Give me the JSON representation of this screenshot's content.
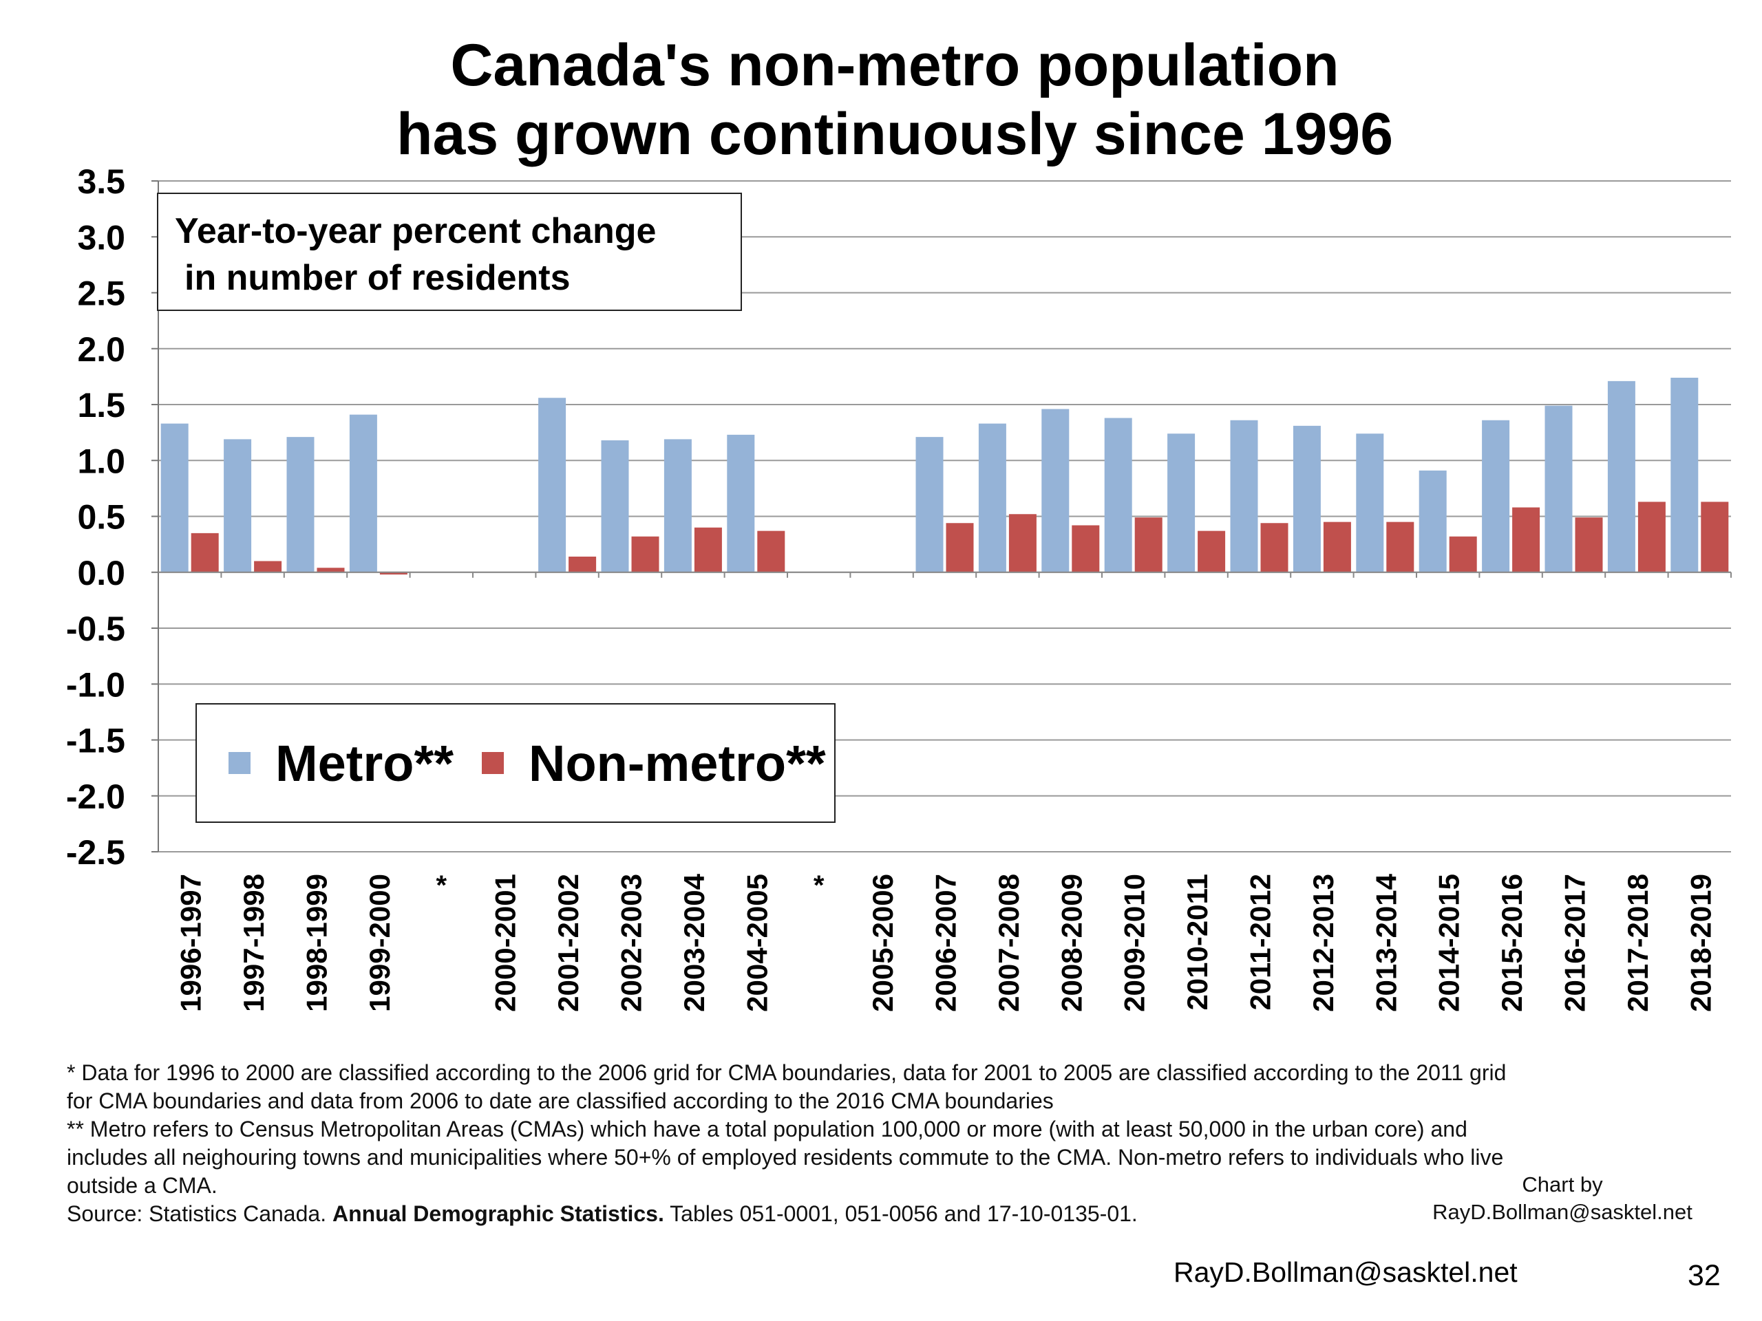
{
  "slide": {
    "title_line1": "Canada's non-metro population",
    "title_line2": "has grown continuously since 1996",
    "box_text_line1": "Year-to-year percent change",
    "box_text_line2": "in number of residents",
    "notes": [
      "* Data for 1996 to 2000 are classified according to the 2006 grid for CMA boundaries, data for 2001 to 2005 are classified according to the 2011 grid",
      "for CMA boundaries and data from 2006 to date are classified according to the 2016 CMA boundaries",
      "** Metro refers to Census Metropolitan Areas (CMAs) which have a total population 100,000 or more (with at least 50,000 in the urban core) and",
      "includes all neighouring towns and municipalities where 50+% of employed residents commute to the CMA. Non-metro refers to individuals who live",
      "outside a CMA."
    ],
    "source_prefix": "Source: Statistics Canada.",
    "source_bold": "Annual Demographic Statistics.",
    "source_suffix": "Tables 051-0001, 051-0056 and 17-10-0135-01.",
    "credit_line1": "Chart by",
    "credit_line2": "RayD.Bollman@sasktel.net",
    "footer_email": "RayD.Bollman@sasktel.net",
    "page_number": "32"
  },
  "chart_data": {
    "type": "bar",
    "title": "Canada's non-metro population has grown continuously since 1996",
    "ylabel": "",
    "xlabel": "",
    "ylim": [
      -2.5,
      3.5
    ],
    "y_ticks": [
      "3.5",
      "3.0",
      "2.5",
      "2.0",
      "1.5",
      "1.0",
      "0.5",
      "0.0",
      "-0.5",
      "-1.0",
      "-1.5",
      "-2.0",
      "-2.5"
    ],
    "y_tick_values": [
      3.5,
      3.0,
      2.5,
      2.0,
      1.5,
      1.0,
      0.5,
      0.0,
      -0.5,
      -1.0,
      -1.5,
      -2.0,
      -2.5
    ],
    "grid": true,
    "legend_position": "bottom-left",
    "categories": [
      "1996-1997",
      "1997-1998",
      "1998-1999",
      "1999-2000",
      "*",
      "2000-2001",
      "2001-2002",
      "2002-2003",
      "2003-2004",
      "2004-2005",
      "*",
      "2005-2006",
      "2006-2007",
      "2007-2008",
      "2008-2009",
      "2009-2010",
      "2010-2011",
      "2011-2012",
      "2012-2013",
      "2013-2014",
      "2014-2015",
      "2015-2016",
      "2016-2017",
      "2017-2018",
      "2018-2019"
    ],
    "series": [
      {
        "name": "Metro**",
        "color": "#95B3D7",
        "values": [
          1.33,
          1.19,
          1.21,
          1.41,
          null,
          null,
          1.56,
          1.18,
          1.19,
          1.23,
          null,
          null,
          1.21,
          1.33,
          1.46,
          1.38,
          1.24,
          1.36,
          1.31,
          1.24,
          0.91,
          1.36,
          1.49,
          1.71,
          1.74
        ]
      },
      {
        "name": "Non-metro**",
        "color": "#C0504D",
        "values": [
          0.35,
          0.1,
          0.04,
          -0.02,
          null,
          null,
          0.14,
          0.32,
          0.4,
          0.37,
          null,
          null,
          0.44,
          0.52,
          0.42,
          0.49,
          0.37,
          0.44,
          0.45,
          0.45,
          0.32,
          0.58,
          0.49,
          0.63,
          0.63
        ]
      }
    ]
  }
}
